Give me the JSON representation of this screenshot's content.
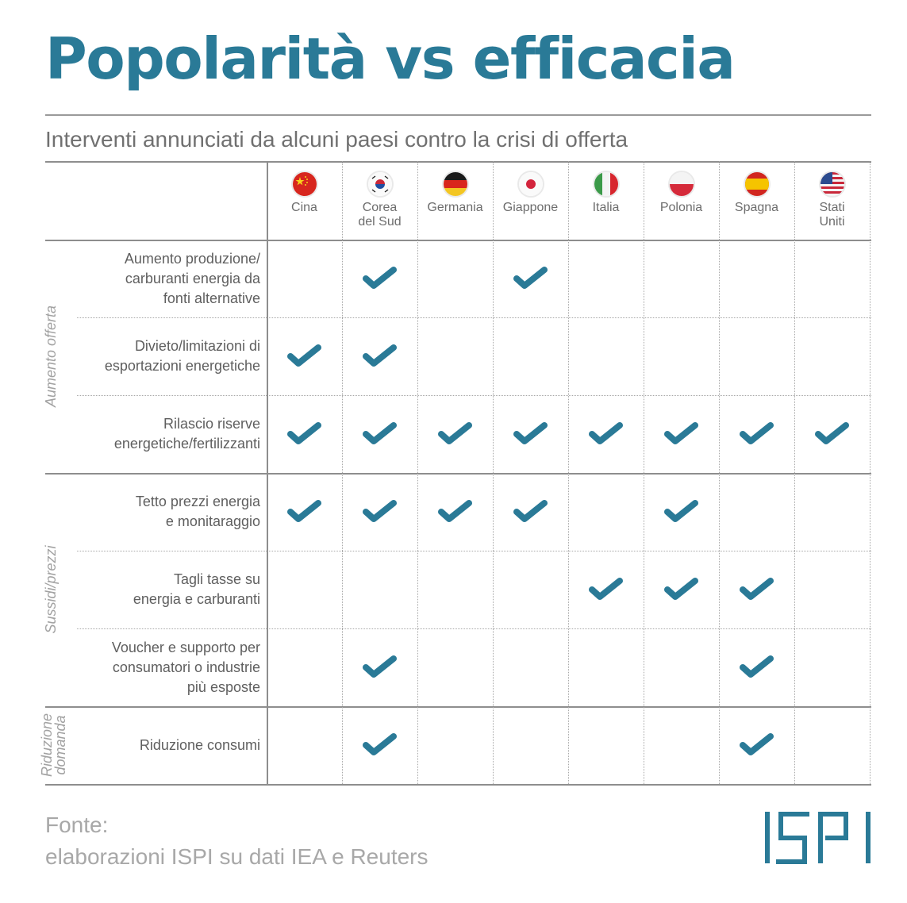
{
  "header": {
    "title": "Popolarità vs efficacia",
    "subtitle": "Interventi annunciati da alcuni paesi contro la crisi di offerta"
  },
  "colors": {
    "accent": "#2a7a97",
    "check": "#2a7a97",
    "text": "#5f5f5f",
    "muted": "#a2a2a2",
    "grid": "#8e8e8e"
  },
  "countries": [
    {
      "name_line1": "Cina",
      "name_line2": "",
      "flag": "china-flag-icon"
    },
    {
      "name_line1": "Corea",
      "name_line2": "del Sud",
      "flag": "south-korea-flag-icon"
    },
    {
      "name_line1": "Germania",
      "name_line2": "",
      "flag": "germany-flag-icon"
    },
    {
      "name_line1": "Giappone",
      "name_line2": "",
      "flag": "japan-flag-icon"
    },
    {
      "name_line1": "Italia",
      "name_line2": "",
      "flag": "italy-flag-icon"
    },
    {
      "name_line1": "Polonia",
      "name_line2": "",
      "flag": "poland-flag-icon"
    },
    {
      "name_line1": "Spagna",
      "name_line2": "",
      "flag": "spain-flag-icon"
    },
    {
      "name_line1": "Stati",
      "name_line2": "Uniti",
      "flag": "usa-flag-icon"
    }
  ],
  "groups": [
    {
      "label_line1": "Aumento offerta",
      "label_line2": ""
    },
    {
      "label_line1": "Sussidi/prezzi",
      "label_line2": ""
    },
    {
      "label_line1": "Riduzione",
      "label_line2": "domanda"
    }
  ],
  "rows": [
    {
      "group": 0,
      "lines": [
        "Aumento produzione/",
        "carburanti energia da",
        "fonti alternative"
      ],
      "checks": [
        false,
        true,
        false,
        true,
        false,
        false,
        false,
        false
      ]
    },
    {
      "group": 0,
      "lines": [
        "Divieto/limitazioni di",
        "esportazioni energetiche"
      ],
      "checks": [
        true,
        true,
        false,
        false,
        false,
        false,
        false,
        false
      ]
    },
    {
      "group": 0,
      "lines": [
        "Rilascio riserve",
        "energetiche/fertilizzanti"
      ],
      "checks": [
        true,
        true,
        true,
        true,
        true,
        true,
        true,
        true
      ]
    },
    {
      "group": 1,
      "lines": [
        "Tetto prezzi energia",
        "e monitaraggio"
      ],
      "checks": [
        true,
        true,
        true,
        true,
        false,
        true,
        false,
        false
      ]
    },
    {
      "group": 1,
      "lines": [
        "Tagli tasse su",
        "energia e carburanti"
      ],
      "checks": [
        false,
        false,
        false,
        false,
        true,
        true,
        true,
        false
      ]
    },
    {
      "group": 1,
      "lines": [
        "Voucher e supporto per",
        "consumatori o industrie",
        "più esposte"
      ],
      "checks": [
        false,
        true,
        false,
        false,
        false,
        false,
        true,
        false
      ]
    },
    {
      "group": 2,
      "lines": [
        "Riduzione consumi"
      ],
      "checks": [
        false,
        true,
        false,
        false,
        false,
        false,
        true,
        false
      ]
    }
  ],
  "footer": {
    "source_line1": "Fonte:",
    "source_line2": "elaborazioni ISPI su dati IEA e Reuters",
    "logo_text": "ISPI"
  },
  "chart_data": {
    "type": "table",
    "title": "Popolarità vs efficacia",
    "subtitle": "Interventi annunciati da alcuni paesi contro la crisi di offerta",
    "columns": [
      "Cina",
      "Corea del Sud",
      "Germania",
      "Giappone",
      "Italia",
      "Polonia",
      "Spagna",
      "Stati Uniti"
    ],
    "row_groups": [
      "Aumento offerta",
      "Aumento offerta",
      "Aumento offerta",
      "Sussidi/prezzi",
      "Sussidi/prezzi",
      "Sussidi/prezzi",
      "Riduzione domanda"
    ],
    "rows": [
      "Aumento produzione/carburanti energia da fonti alternative",
      "Divieto/limitazioni di esportazioni energetiche",
      "Rilascio riserve energetiche/fertilizzanti",
      "Tetto prezzi energia e monitaraggio",
      "Tagli tasse su energia e carburanti",
      "Voucher e supporto per consumatori o industrie più esposte",
      "Riduzione consumi"
    ],
    "values": [
      [
        0,
        1,
        0,
        1,
        0,
        0,
        0,
        0
      ],
      [
        1,
        1,
        0,
        0,
        0,
        0,
        0,
        0
      ],
      [
        1,
        1,
        1,
        1,
        1,
        1,
        1,
        1
      ],
      [
        1,
        1,
        1,
        1,
        0,
        1,
        0,
        0
      ],
      [
        0,
        0,
        0,
        0,
        1,
        1,
        1,
        0
      ],
      [
        0,
        1,
        0,
        0,
        0,
        0,
        1,
        0
      ],
      [
        0,
        1,
        0,
        0,
        0,
        0,
        1,
        0
      ]
    ],
    "source": "Fonte: elaborazioni ISPI su dati IEA e Reuters"
  }
}
